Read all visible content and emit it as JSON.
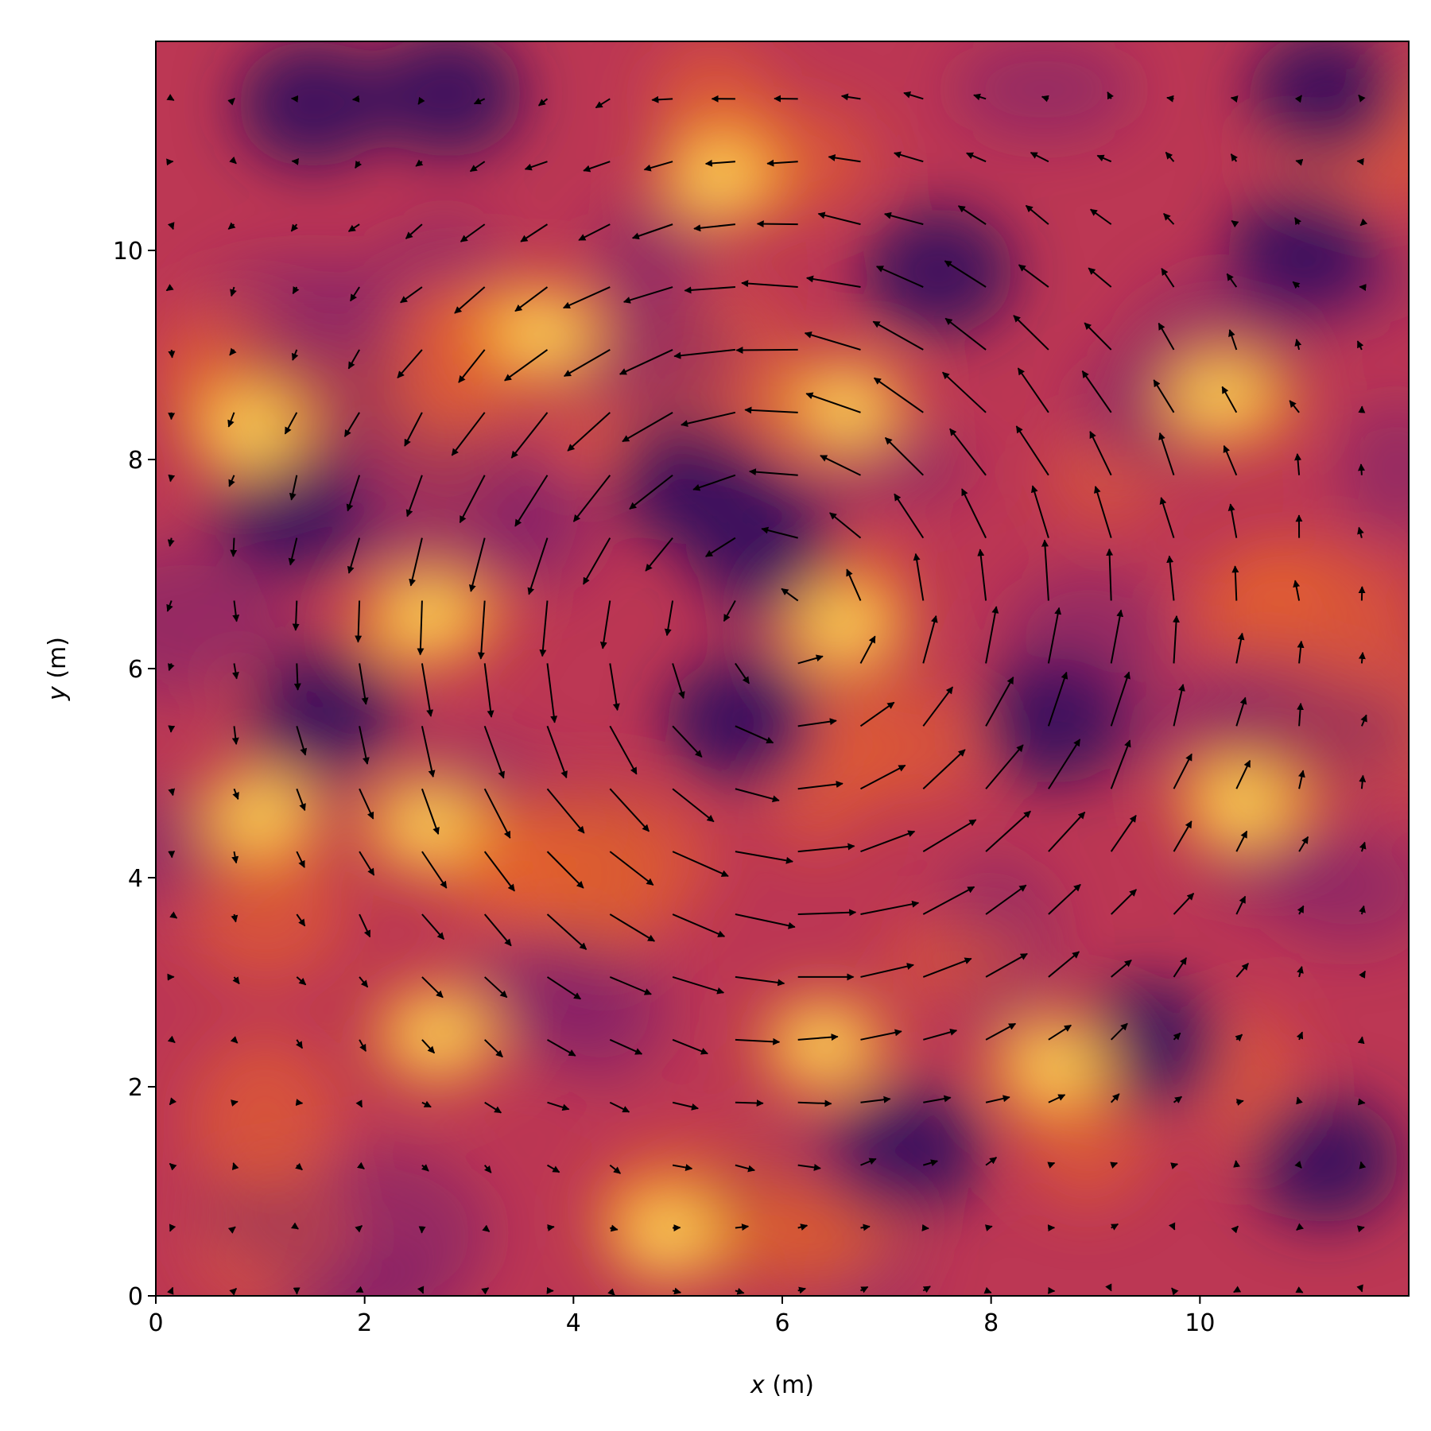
{
  "chart_data": {
    "type": "heatmap",
    "subtype": "scalar field with quiver (velocity arrows) overlay, swirling vortex",
    "title": "",
    "xlabel": {
      "var": "x",
      "unit": " (m)"
    },
    "ylabel": {
      "var": "y",
      "unit": " (m)"
    },
    "xlim": [
      0,
      12
    ],
    "ylim": [
      0,
      12
    ],
    "x_ticks": [
      0,
      2,
      4,
      6,
      8,
      10
    ],
    "y_ticks": [
      0,
      2,
      4,
      6,
      8,
      10
    ],
    "colormap": "inferno",
    "colormap_stops": [
      "#000004",
      "#320a5e",
      "#781c6d",
      "#bc3754",
      "#ed6925",
      "#fbb61a",
      "#fcffa4"
    ],
    "grid": false,
    "vortex_center": [
      6.0,
      6.4
    ],
    "quiver_grid_spacing": 0.6,
    "field_features": {
      "dark_blobs": [
        [
          1.6,
          5.6
        ],
        [
          5.1,
          7.8
        ],
        [
          5.8,
          7.2
        ],
        [
          5.6,
          5.5
        ],
        [
          1.5,
          11.4
        ],
        [
          7.5,
          9.8
        ],
        [
          11.2,
          1.3
        ],
        [
          7.2,
          1.4
        ],
        [
          1.3,
          7.5
        ],
        [
          11.2,
          11.5
        ],
        [
          2.8,
          11.5
        ],
        [
          11.0,
          10.0
        ],
        [
          8.6,
          5.5
        ],
        [
          9.5,
          2.4
        ]
      ],
      "bright_spots": [
        [
          6.4,
          2.4
        ],
        [
          6.6,
          8.5
        ],
        [
          6.6,
          6.4
        ],
        [
          2.6,
          4.5
        ],
        [
          1.0,
          4.6
        ],
        [
          10.2,
          8.6
        ],
        [
          2.6,
          6.5
        ],
        [
          3.7,
          9.2
        ],
        [
          4.9,
          0.6
        ],
        [
          10.4,
          4.7
        ],
        [
          0.9,
          8.3
        ],
        [
          8.6,
          2.2
        ],
        [
          2.7,
          2.5
        ],
        [
          5.4,
          10.7
        ]
      ]
    }
  }
}
